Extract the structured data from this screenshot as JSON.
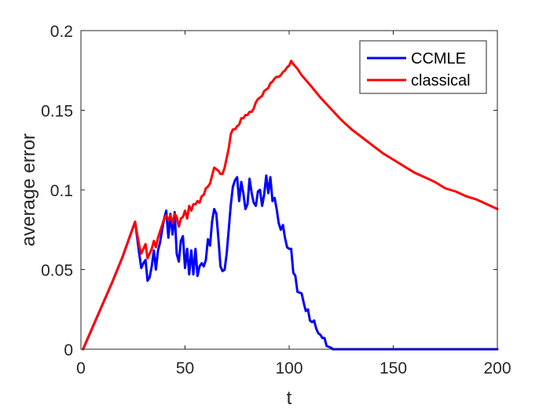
{
  "chart_data": {
    "type": "line",
    "title": "",
    "xlabel": "t",
    "ylabel": "average error",
    "xlim": [
      0,
      200
    ],
    "ylim": [
      0,
      0.2
    ],
    "xticks": [
      0,
      50,
      100,
      150,
      200
    ],
    "xtick_labels": [
      "0",
      "50",
      "100",
      "150",
      "200"
    ],
    "yticks": [
      0,
      0.05,
      0.1,
      0.15,
      0.2
    ],
    "ytick_labels": [
      "0",
      "0.05",
      "0.1",
      "0.15",
      "0.2"
    ],
    "grid": false,
    "legend_position": "top-right",
    "series": [
      {
        "name": "CCMLE",
        "color": "#0000ff",
        "points": [
          [
            1,
            0
          ],
          [
            5,
            0.012
          ],
          [
            10,
            0.027
          ],
          [
            15,
            0.042
          ],
          [
            20,
            0.058
          ],
          [
            26,
            0.08
          ],
          [
            27,
            0.07
          ],
          [
            28,
            0.06
          ],
          [
            29,
            0.051
          ],
          [
            30,
            0.054
          ],
          [
            31,
            0.056
          ],
          [
            32,
            0.043
          ],
          [
            33,
            0.045
          ],
          [
            34,
            0.052
          ],
          [
            35,
            0.062
          ],
          [
            36,
            0.05
          ],
          [
            37,
            0.062
          ],
          [
            38,
            0.067
          ],
          [
            39,
            0.075
          ],
          [
            40,
            0.082
          ],
          [
            41,
            0.087
          ],
          [
            42,
            0.07
          ],
          [
            43,
            0.085
          ],
          [
            44,
            0.072
          ],
          [
            45,
            0.086
          ],
          [
            46,
            0.06
          ],
          [
            47,
            0.055
          ],
          [
            48,
            0.068
          ],
          [
            49,
            0.071
          ],
          [
            50,
            0.051
          ],
          [
            51,
            0.063
          ],
          [
            52,
            0.047
          ],
          [
            53,
            0.062
          ],
          [
            54,
            0.047
          ],
          [
            55,
            0.063
          ],
          [
            56,
            0.046
          ],
          [
            57,
            0.052
          ],
          [
            58,
            0.054
          ],
          [
            59,
            0.052
          ],
          [
            60,
            0.056
          ],
          [
            61,
            0.069
          ],
          [
            62,
            0.065
          ],
          [
            63,
            0.08
          ],
          [
            64,
            0.088
          ],
          [
            65,
            0.085
          ],
          [
            66,
            0.07
          ],
          [
            67,
            0.052
          ],
          [
            68,
            0.049
          ],
          [
            69,
            0.05
          ],
          [
            70,
            0.06
          ],
          [
            71,
            0.075
          ],
          [
            72,
            0.091
          ],
          [
            73,
            0.102
          ],
          [
            74,
            0.106
          ],
          [
            75,
            0.108
          ],
          [
            76,
            0.093
          ],
          [
            77,
            0.105
          ],
          [
            78,
            0.098
          ],
          [
            79,
            0.088
          ],
          [
            80,
            0.091
          ],
          [
            81,
            0.107
          ],
          [
            82,
            0.098
          ],
          [
            83,
            0.092
          ],
          [
            84,
            0.09
          ],
          [
            85,
            0.099
          ],
          [
            86,
            0.1
          ],
          [
            87,
            0.09
          ],
          [
            88,
            0.097
          ],
          [
            89,
            0.109
          ],
          [
            90,
            0.098
          ],
          [
            91,
            0.108
          ],
          [
            92,
            0.093
          ],
          [
            93,
            0.095
          ],
          [
            94,
            0.088
          ],
          [
            95,
            0.079
          ],
          [
            96,
            0.075
          ],
          [
            97,
            0.078
          ],
          [
            98,
            0.07
          ],
          [
            99,
            0.064
          ],
          [
            100,
            0.063
          ],
          [
            101,
            0.063
          ],
          [
            102,
            0.048
          ],
          [
            103,
            0.046
          ],
          [
            104,
            0.036
          ],
          [
            106,
            0.035
          ],
          [
            107,
            0.029
          ],
          [
            108,
            0.024
          ],
          [
            109,
            0.025
          ],
          [
            110,
            0.018
          ],
          [
            111,
            0.017
          ],
          [
            112,
            0.018
          ],
          [
            113,
            0.013
          ],
          [
            114,
            0.01
          ],
          [
            115,
            0.009
          ],
          [
            116,
            0.007
          ],
          [
            117,
            0.007
          ],
          [
            118,
            0.002
          ],
          [
            120,
            0.001
          ],
          [
            121,
            0
          ],
          [
            140,
            0
          ],
          [
            160,
            0
          ],
          [
            180,
            0
          ],
          [
            200,
            0
          ]
        ]
      },
      {
        "name": "classical",
        "color": "#ff0000",
        "points": [
          [
            1,
            0
          ],
          [
            5,
            0.012
          ],
          [
            10,
            0.027
          ],
          [
            15,
            0.042
          ],
          [
            20,
            0.058
          ],
          [
            26,
            0.08
          ],
          [
            27,
            0.072
          ],
          [
            28,
            0.065
          ],
          [
            29,
            0.06
          ],
          [
            30,
            0.063
          ],
          [
            31,
            0.066
          ],
          [
            32,
            0.057
          ],
          [
            33,
            0.06
          ],
          [
            34,
            0.063
          ],
          [
            35,
            0.068
          ],
          [
            36,
            0.064
          ],
          [
            37,
            0.07
          ],
          [
            38,
            0.074
          ],
          [
            39,
            0.078
          ],
          [
            40,
            0.082
          ],
          [
            41,
            0.084
          ],
          [
            42,
            0.081
          ],
          [
            43,
            0.084
          ],
          [
            44,
            0.079
          ],
          [
            45,
            0.085
          ],
          [
            46,
            0.083
          ],
          [
            47,
            0.077
          ],
          [
            48,
            0.082
          ],
          [
            49,
            0.083
          ],
          [
            50,
            0.087
          ],
          [
            51,
            0.082
          ],
          [
            52,
            0.09
          ],
          [
            53,
            0.087
          ],
          [
            54,
            0.091
          ],
          [
            55,
            0.091
          ],
          [
            56,
            0.093
          ],
          [
            57,
            0.092
          ],
          [
            58,
            0.096
          ],
          [
            59,
            0.097
          ],
          [
            60,
            0.101
          ],
          [
            61,
            0.102
          ],
          [
            62,
            0.104
          ],
          [
            63,
            0.109
          ],
          [
            64,
            0.114
          ],
          [
            65,
            0.113
          ],
          [
            66,
            0.112
          ],
          [
            67,
            0.11
          ],
          [
            68,
            0.11
          ],
          [
            69,
            0.114
          ],
          [
            70,
            0.12
          ],
          [
            71,
            0.126
          ],
          [
            72,
            0.135
          ],
          [
            73,
            0.138
          ],
          [
            74,
            0.138
          ],
          [
            75,
            0.14
          ],
          [
            76,
            0.141
          ],
          [
            77,
            0.145
          ],
          [
            78,
            0.145
          ],
          [
            79,
            0.147
          ],
          [
            80,
            0.147
          ],
          [
            81,
            0.149
          ],
          [
            82,
            0.149
          ],
          [
            83,
            0.151
          ],
          [
            84,
            0.155
          ],
          [
            85,
            0.157
          ],
          [
            86,
            0.158
          ],
          [
            87,
            0.159
          ],
          [
            88,
            0.162
          ],
          [
            89,
            0.163
          ],
          [
            90,
            0.164
          ],
          [
            91,
            0.167
          ],
          [
            92,
            0.168
          ],
          [
            93,
            0.17
          ],
          [
            94,
            0.171
          ],
          [
            95,
            0.171
          ],
          [
            96,
            0.172
          ],
          [
            97,
            0.174
          ],
          [
            98,
            0.175
          ],
          [
            99,
            0.177
          ],
          [
            100,
            0.178
          ],
          [
            101,
            0.181
          ],
          [
            102,
            0.179
          ],
          [
            104,
            0.176
          ],
          [
            106,
            0.172
          ],
          [
            110,
            0.166
          ],
          [
            115,
            0.158
          ],
          [
            120,
            0.151
          ],
          [
            125,
            0.144
          ],
          [
            130,
            0.138
          ],
          [
            135,
            0.133
          ],
          [
            140,
            0.128
          ],
          [
            145,
            0.123
          ],
          [
            150,
            0.119
          ],
          [
            155,
            0.115
          ],
          [
            160,
            0.111
          ],
          [
            165,
            0.108
          ],
          [
            170,
            0.105
          ],
          [
            175,
            0.101
          ],
          [
            180,
            0.099
          ],
          [
            185,
            0.096
          ],
          [
            190,
            0.094
          ],
          [
            195,
            0.091
          ],
          [
            200,
            0.088
          ]
        ]
      }
    ]
  }
}
